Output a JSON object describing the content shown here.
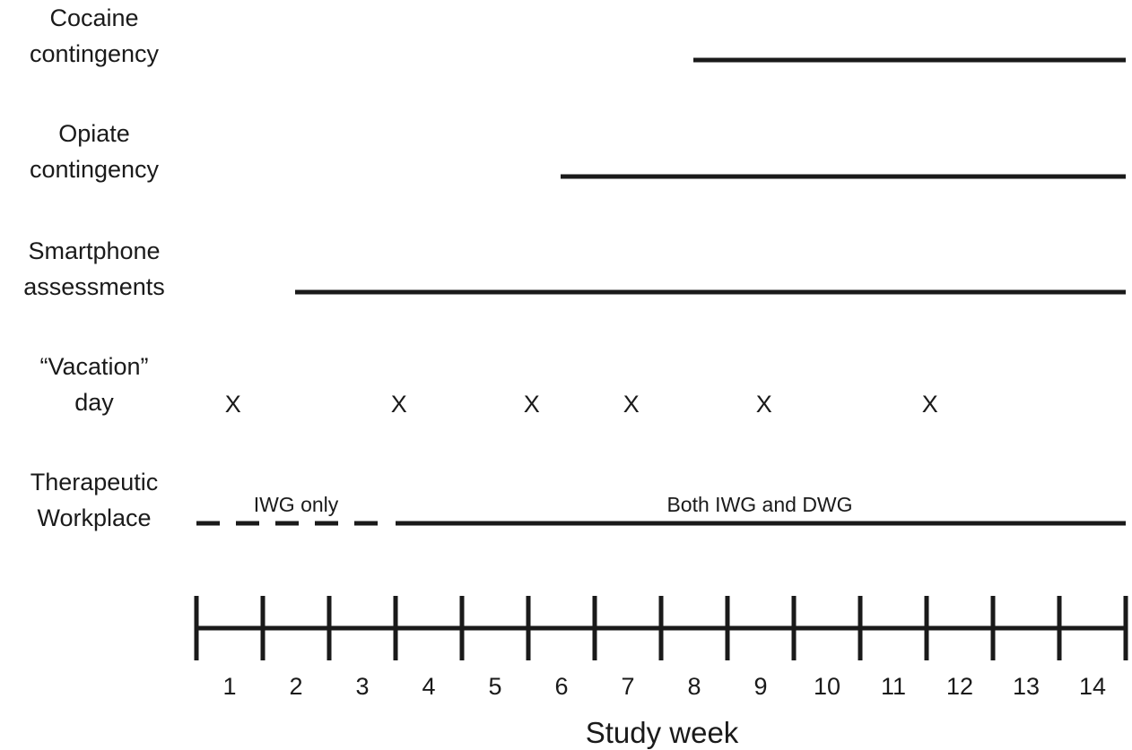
{
  "rows": {
    "cocaine": {
      "label_line1": "Cocaine",
      "label_line2": "contingency",
      "start_week": 8,
      "end_week": 14
    },
    "opiate": {
      "label_line1": "Opiate",
      "label_line2": "contingency",
      "start_week": 6,
      "end_week": 14
    },
    "smartphone": {
      "label_line1": "Smartphone",
      "label_line2": "assessments",
      "start_week": 2,
      "end_week": 14
    },
    "vacation": {
      "label_line1": "“Vacation”",
      "label_line2": "day",
      "marker": "X",
      "weeks": [
        1.3,
        3.8,
        5.8,
        7.3,
        9.3,
        11.8
      ]
    },
    "therapeutic": {
      "label_line1": "Therapeutic",
      "label_line2": "Workplace",
      "phase1": {
        "label": "IWG only",
        "start_week": 1,
        "end_week": 4,
        "style": "dashed"
      },
      "phase2": {
        "label": "Both IWG and DWG",
        "start_week": 4,
        "end_week": 14,
        "style": "solid"
      }
    }
  },
  "axis": {
    "title": "Study week",
    "weeks": [
      "1",
      "2",
      "3",
      "4",
      "5",
      "6",
      "7",
      "8",
      "9",
      "10",
      "11",
      "12",
      "13",
      "14"
    ]
  },
  "colors": {
    "ink": "#1a1a1a"
  }
}
